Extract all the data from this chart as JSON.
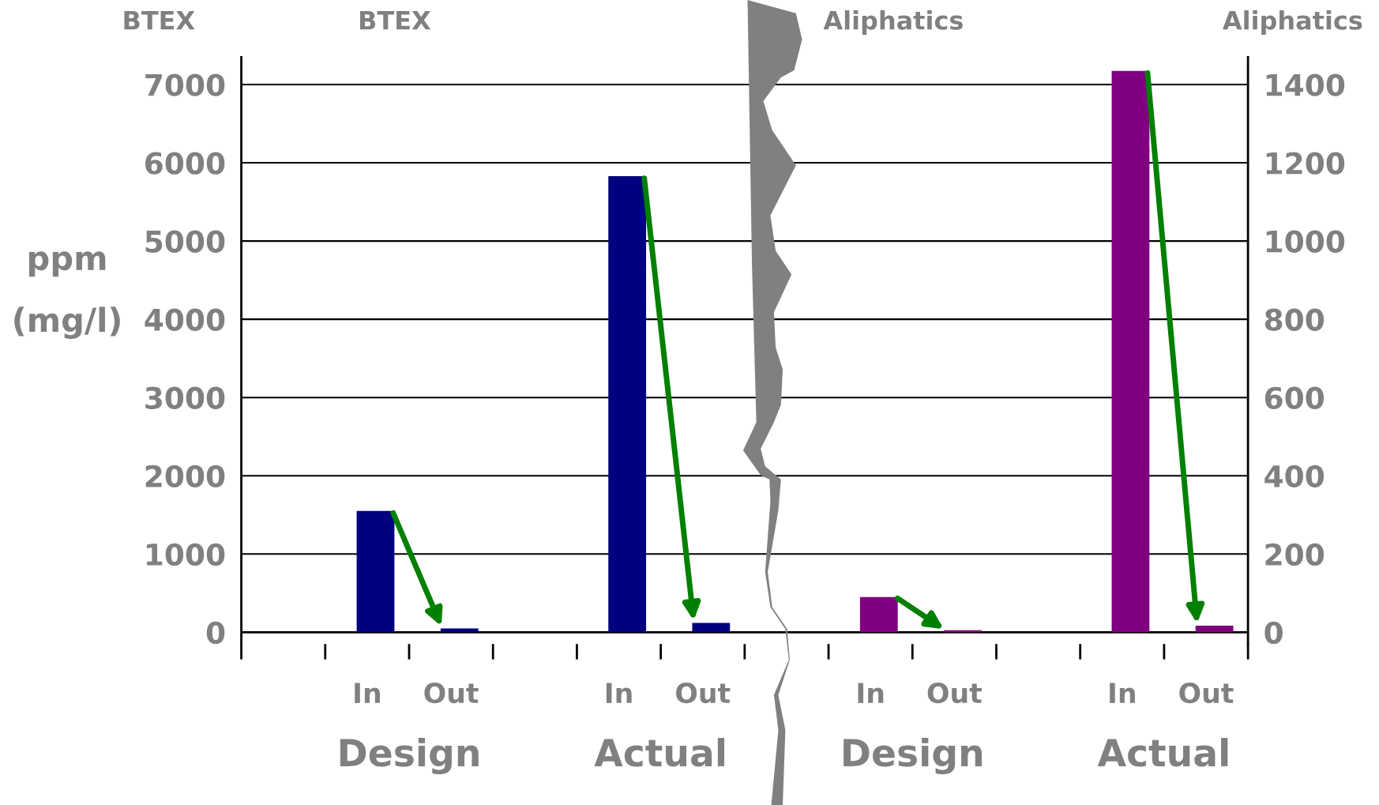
{
  "chart_data": {
    "type": "bar",
    "categories": [
      null,
      "In",
      "Out",
      null,
      "In",
      "Out",
      null,
      "In",
      "Out",
      null,
      "In",
      "Out"
    ],
    "series": [
      {
        "color": "#000080",
        "values": [
          null,
          1550,
          50,
          null,
          5830,
          120,
          null,
          null,
          null,
          null,
          null,
          null
        ]
      },
      {
        "color": "#800080",
        "axis": "y2",
        "values": [
          null,
          null,
          null,
          null,
          null,
          null,
          null,
          90,
          5,
          null,
          1435,
          17
        ]
      }
    ],
    "ylabel": "ppm\n(mg/l)",
    "ylim": [
      -150,
      7350
    ],
    "yticks": [
      0,
      1000,
      2000,
      3000,
      4000,
      5000,
      6000,
      7000
    ],
    "y2lim": [
      -30,
      1470
    ],
    "y2ticks": [
      0,
      200,
      400,
      600,
      800,
      1000,
      1200,
      1400
    ],
    "grid": "y",
    "annotations": [
      "BTEX",
      "BTEX",
      "Aliphatics",
      "Aliphatics",
      "Design",
      "Actual",
      "Design",
      "Actual"
    ]
  }
}
